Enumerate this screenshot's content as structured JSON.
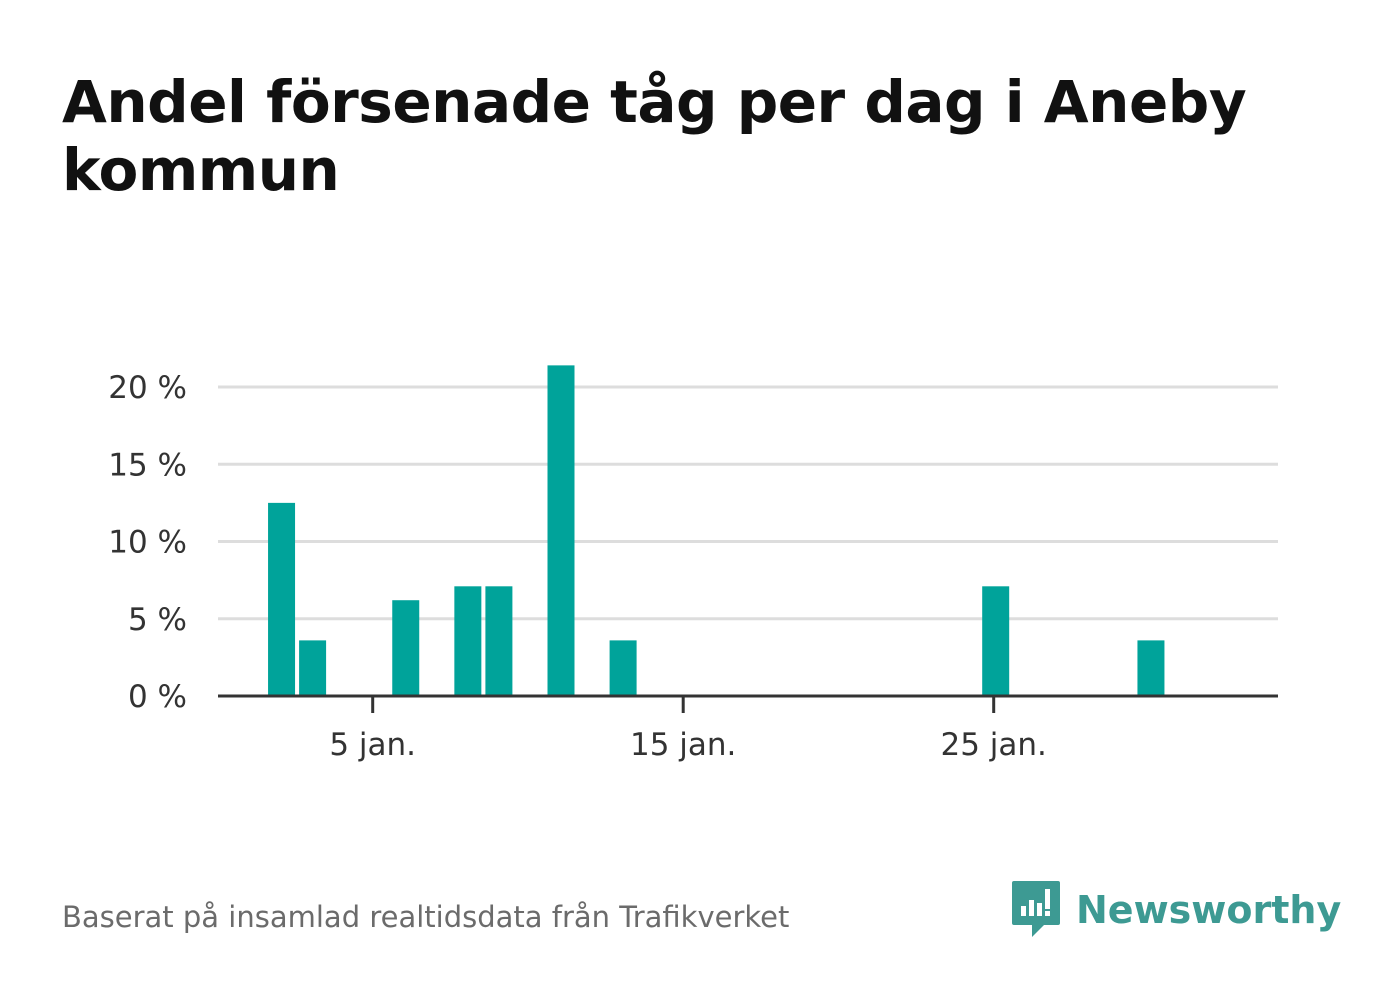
{
  "title": "Andel försenade tåg per dag i Aneby kommun",
  "source": "Baserat på insamlad realtidsdata från Trafikverket",
  "brand": {
    "name": "Newsworthy",
    "icon": "newsworthy-logo-icon",
    "color": "#3d9a93"
  },
  "colors": {
    "bar": "#00a39a",
    "grid": "#dddddd",
    "axis": "#333333",
    "text": "#333333"
  },
  "chart_data": {
    "type": "bar",
    "title": "Andel försenade tåg per dag i Aneby kommun",
    "xlabel": "",
    "ylabel": "",
    "x_range": [
      1,
      31
    ],
    "x_ticks": [
      5,
      15,
      25
    ],
    "x_tick_labels": [
      "5 jan.",
      "15 jan.",
      "25 jan."
    ],
    "ylim": [
      0,
      21.5
    ],
    "y_ticks": [
      0,
      5,
      10,
      15,
      20
    ],
    "y_tick_labels": [
      "0 %",
      "5 %",
      "10 %",
      "15 %",
      "20 %"
    ],
    "grid": true,
    "categories": [
      1,
      2,
      3,
      4,
      5,
      6,
      7,
      8,
      9,
      10,
      11,
      12,
      13,
      14,
      15,
      16,
      17,
      18,
      19,
      20,
      21,
      22,
      23,
      24,
      25,
      26,
      27,
      28,
      29,
      30,
      31
    ],
    "values": [
      0,
      12.5,
      3.6,
      0,
      0,
      6.2,
      0,
      7.1,
      7.1,
      0,
      21.4,
      0,
      3.6,
      0,
      0,
      0,
      0,
      0,
      0,
      0,
      0,
      0,
      0,
      0,
      7.1,
      0,
      0,
      0,
      0,
      3.6,
      0
    ]
  }
}
